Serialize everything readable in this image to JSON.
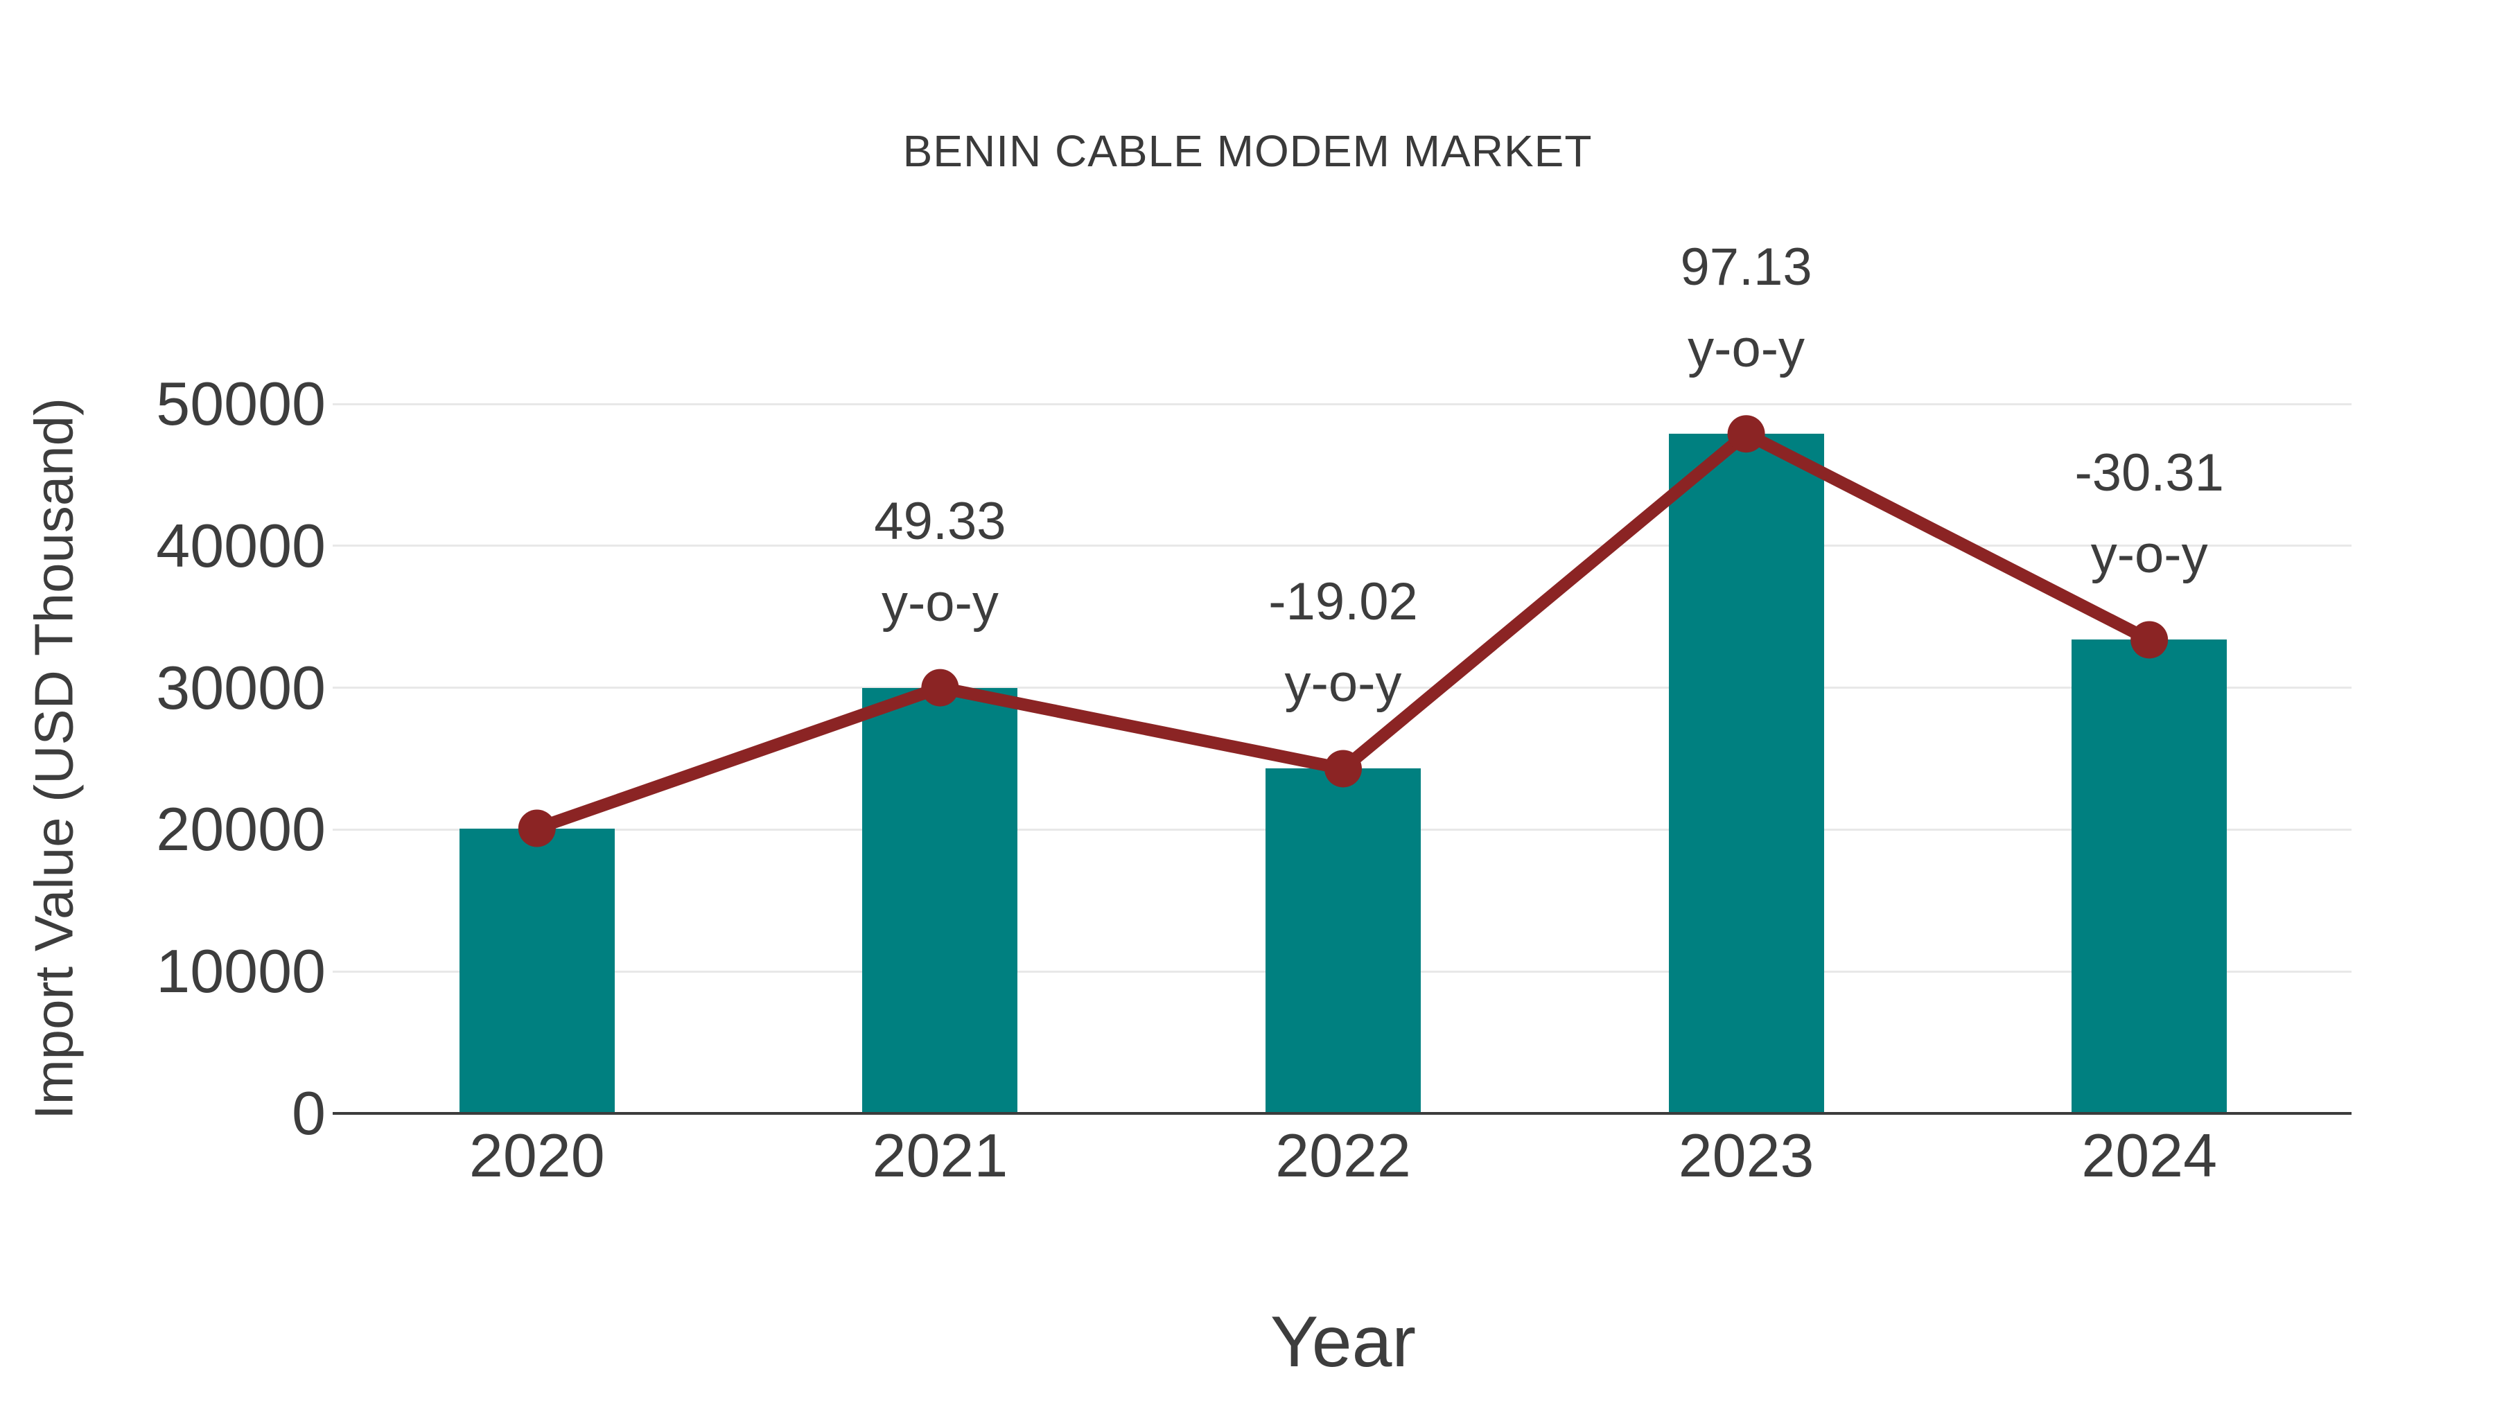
{
  "chart_data": {
    "type": "bar",
    "title": "BENIN CABLE MODEM MARKET",
    "xlabel": "Year",
    "ylabel": "Import Value (USD Thousand)",
    "categories": [
      "2020",
      "2021",
      "2022",
      "2023",
      "2024"
    ],
    "series": [
      {
        "name": "Import Value (bars)",
        "type": "bar",
        "color": "#008080",
        "values": [
          20090,
          30000,
          24294,
          47891,
          33375
        ]
      },
      {
        "name": "Import Value (trend line)",
        "type": "line",
        "color": "#8B2424",
        "values": [
          20090,
          30000,
          24294,
          47891,
          33375
        ]
      }
    ],
    "annotations": [
      {
        "category": "2021",
        "value": "49.33",
        "suffix": "y-o-y"
      },
      {
        "category": "2022",
        "value": "-19.02",
        "suffix": "y-o-y"
      },
      {
        "category": "2023",
        "value": "97.13",
        "suffix": "y-o-y"
      },
      {
        "category": "2024",
        "value": "-30.31",
        "suffix": "y-o-y"
      }
    ],
    "yticks": [
      0,
      10000,
      20000,
      30000,
      40000,
      50000
    ],
    "ylim": [
      0,
      50000
    ],
    "grid": true,
    "legend": false,
    "colors": {
      "grid": "#e8e8e8",
      "axis": "#3c3c3c",
      "text": "#3d3d3d"
    }
  }
}
